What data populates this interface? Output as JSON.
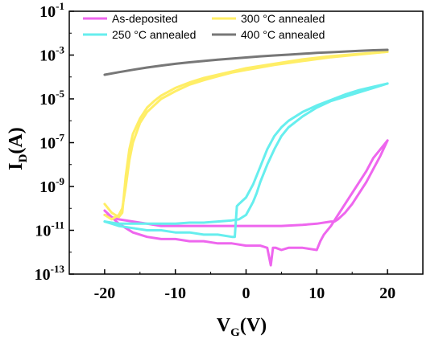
{
  "chart_data": {
    "type": "line",
    "title": "",
    "xlabel": {
      "main": "V",
      "sub": "G",
      "tail": "(V)"
    },
    "ylabel": {
      "main": "I",
      "sub": "D",
      "tail": "(A)"
    },
    "xlim": [
      -25,
      25
    ],
    "ylim_exponent": [
      -13,
      -1
    ],
    "yscale": "log",
    "x_ticks": [
      {
        "value": -20,
        "label": "-20"
      },
      {
        "value": -10,
        "label": "-10"
      },
      {
        "value": 0,
        "label": "0"
      },
      {
        "value": 10,
        "label": "10"
      },
      {
        "value": 20,
        "label": "20"
      }
    ],
    "y_ticks": [
      {
        "exp": -1,
        "base": "10",
        "sup": "-1"
      },
      {
        "exp": -3,
        "base": "10",
        "sup": "-3"
      },
      {
        "exp": -5,
        "base": "10",
        "sup": "-5"
      },
      {
        "exp": -7,
        "base": "10",
        "sup": "-7"
      },
      {
        "exp": -9,
        "base": "10",
        "sup": "-9"
      },
      {
        "exp": -11,
        "base": "10",
        "sup": "-11"
      },
      {
        "exp": -13,
        "base": "10",
        "sup": "-13"
      }
    ],
    "grid": false,
    "legend_position": "top",
    "series": [
      {
        "name": "As-deposited",
        "color": "#ee66ee",
        "branches": [
          {
            "x": [
              -20,
              -18,
              -16,
              -14,
              -12,
              -10,
              -8,
              -6,
              -4,
              -2,
              0,
              2,
              3,
              3.5,
              3.8,
              4.2,
              5,
              6,
              8,
              10,
              10.5,
              11,
              12,
              13,
              14,
              15,
              16,
              17,
              18,
              19,
              20
            ],
            "log_y": [
              -10.1,
              -10.7,
              -11.1,
              -11.3,
              -11.4,
              -11.4,
              -11.5,
              -11.5,
              -11.6,
              -11.6,
              -11.7,
              -11.7,
              -11.8,
              -12.6,
              -11.8,
              -11.8,
              -11.9,
              -11.8,
              -11.8,
              -11.9,
              -11.5,
              -11.2,
              -10.8,
              -10.3,
              -9.8,
              -9.3,
              -8.8,
              -8.3,
              -7.7,
              -7.3,
              -6.9
            ]
          },
          {
            "x": [
              20,
              19,
              18,
              17,
              16,
              15,
              14,
              13,
              12.5,
              12,
              10,
              8,
              5,
              2,
              0,
              -2,
              -5,
              -8,
              -10,
              -12,
              -14,
              -16,
              -18,
              -20
            ],
            "log_y": [
              -6.9,
              -7.6,
              -8.2,
              -8.8,
              -9.3,
              -9.8,
              -10.2,
              -10.5,
              -10.6,
              -10.6,
              -10.7,
              -10.75,
              -10.8,
              -10.8,
              -10.8,
              -10.8,
              -10.8,
              -10.8,
              -10.8,
              -10.8,
              -10.7,
              -10.6,
              -10.5,
              -10.3
            ]
          }
        ]
      },
      {
        "name": "250 °C annealed",
        "color": "#66eeee",
        "branches": [
          {
            "x": [
              -20,
              -18,
              -16,
              -14,
              -12,
              -10,
              -8,
              -6,
              -4,
              -2,
              -1.6,
              -1.3,
              -1,
              0,
              1,
              2,
              3,
              4,
              5,
              6,
              8,
              10,
              12,
              14,
              16,
              18,
              20
            ],
            "log_y": [
              -10.6,
              -10.8,
              -10.9,
              -11,
              -11,
              -11.1,
              -11.1,
              -11.2,
              -11.2,
              -11.3,
              -11.3,
              -9.9,
              -9.8,
              -9.5,
              -8.9,
              -8.1,
              -7.3,
              -6.7,
              -6.3,
              -6,
              -5.6,
              -5.3,
              -5.05,
              -4.8,
              -4.6,
              -4.45,
              -4.3
            ]
          },
          {
            "x": [
              20,
              18,
              16,
              14,
              12,
              10,
              8,
              6,
              5,
              4,
              3,
              2,
              1.5,
              1,
              0.5,
              0,
              -0.5,
              -1,
              -2,
              -4,
              -6,
              -8,
              -10,
              -12,
              -14,
              -16,
              -18,
              -20
            ],
            "log_y": [
              -4.3,
              -4.5,
              -4.7,
              -4.9,
              -5.1,
              -5.4,
              -5.8,
              -6.3,
              -6.7,
              -7.3,
              -8,
              -8.8,
              -9.3,
              -9.7,
              -10,
              -10.3,
              -10.4,
              -10.5,
              -10.55,
              -10.6,
              -10.65,
              -10.65,
              -10.7,
              -10.7,
              -10.7,
              -10.7,
              -10.7,
              -10.6
            ]
          }
        ]
      },
      {
        "name": "300 °C annealed",
        "color": "#ffee66",
        "branches": [
          {
            "x": [
              -20,
              -19,
              -18,
              -17.5,
              -17,
              -16.5,
              -16,
              -15,
              -14,
              -13,
              -12,
              -10,
              -8,
              -6,
              -4,
              -2,
              0,
              4,
              8,
              12,
              16,
              20
            ],
            "log_y": [
              -9.8,
              -10.2,
              -10.4,
              -10.2,
              -8.5,
              -7.3,
              -6.6,
              -5.9,
              -5.4,
              -5.1,
              -4.85,
              -4.5,
              -4.25,
              -4.05,
              -3.9,
              -3.75,
              -3.6,
              -3.4,
              -3.2,
              -3.05,
              -2.95,
              -2.85
            ]
          },
          {
            "x": [
              20,
              16,
              12,
              8,
              4,
              0,
              -2,
              -4,
              -6,
              -8,
              -10,
              -12,
              -14,
              -15,
              -16,
              -16.5,
              -17,
              -17.5,
              -18,
              -19,
              -20
            ],
            "log_y": [
              -2.85,
              -2.97,
              -3.1,
              -3.27,
              -3.45,
              -3.68,
              -3.8,
              -3.97,
              -4.15,
              -4.35,
              -4.65,
              -5,
              -5.6,
              -6.1,
              -7,
              -7.8,
              -9,
              -10,
              -10.3,
              -10.5,
              -10.3
            ]
          }
        ]
      },
      {
        "name": "400 °C annealed",
        "color": "#777777",
        "branches": [
          {
            "x": [
              -20,
              -18,
              -16,
              -14,
              -12,
              -10,
              -8,
              -6,
              -4,
              -2,
              0,
              2,
              4,
              6,
              8,
              10,
              12,
              14,
              16,
              18,
              20
            ],
            "log_y": [
              -3.9,
              -3.78,
              -3.67,
              -3.57,
              -3.48,
              -3.4,
              -3.33,
              -3.27,
              -3.21,
              -3.16,
              -3.11,
              -3.06,
              -3.02,
              -2.98,
              -2.94,
              -2.9,
              -2.87,
              -2.84,
              -2.81,
              -2.78,
              -2.76
            ]
          }
        ]
      }
    ],
    "legend": [
      {
        "label": "As-deposited",
        "color": "#ee66ee"
      },
      {
        "label": "300 °C annealed",
        "color": "#ffee66"
      },
      {
        "label": "250 °C annealed",
        "color": "#66eeee"
      },
      {
        "label": "400 °C annealed",
        "color": "#777777"
      }
    ]
  }
}
